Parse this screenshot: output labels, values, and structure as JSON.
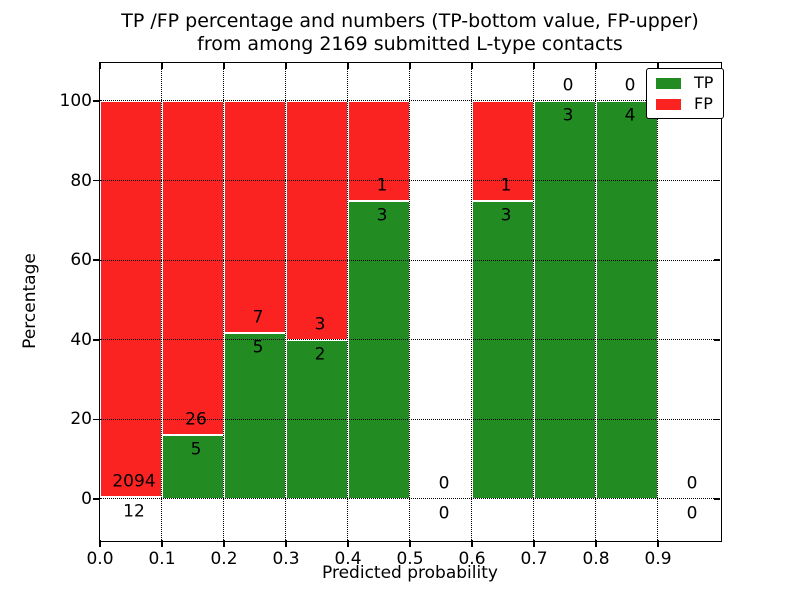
{
  "figure": {
    "title_line1": "TP /FP percentage and numbers (TP-bottom value, FP-upper)",
    "title_line2": "from among 2169 submitted L-type contacts"
  },
  "colors": {
    "tp": "#228b22",
    "fp": "#fb2222",
    "grid": "#000000",
    "text": "#000000",
    "background": "#ffffff"
  },
  "chart_data": {
    "type": "bar",
    "stacked": true,
    "title": "TP /FP percentage and numbers (TP-bottom value, FP-upper)\nfrom among 2169 submitted L-type contacts",
    "xlabel": "Predicted probability",
    "ylabel": "Percentage",
    "total_contacts": 2169,
    "xlim": [
      0.0,
      1.0
    ],
    "ylim": [
      -10,
      110
    ],
    "x_tick_labels": [
      "0.0",
      "0.1",
      "0.2",
      "0.3",
      "0.4",
      "0.5",
      "0.6",
      "0.7",
      "0.8",
      "0.9"
    ],
    "y_tick_values": [
      0,
      20,
      40,
      60,
      80,
      100
    ],
    "grid": "dotted",
    "legend_position": "upper right",
    "legend": [
      {
        "label": "TP",
        "color": "#228b22"
      },
      {
        "label": "FP",
        "color": "#fb2222"
      }
    ],
    "series": [
      {
        "name": "TP",
        "color": "#228b22",
        "counts": [
          12,
          5,
          5,
          2,
          3,
          0,
          3,
          3,
          4,
          0
        ]
      },
      {
        "name": "FP",
        "color": "#fb2222",
        "counts": [
          2094,
          26,
          7,
          3,
          1,
          0,
          1,
          0,
          0,
          0
        ]
      }
    ],
    "bins": [
      {
        "range": "0.0-0.1",
        "tp": 12,
        "fp": 2094,
        "tp_pct": 0.57
      },
      {
        "range": "0.1-0.2",
        "tp": 5,
        "fp": 26,
        "tp_pct": 16.13
      },
      {
        "range": "0.2-0.3",
        "tp": 5,
        "fp": 7,
        "tp_pct": 41.67
      },
      {
        "range": "0.3-0.4",
        "tp": 2,
        "fp": 3,
        "tp_pct": 40.0
      },
      {
        "range": "0.4-0.5",
        "tp": 3,
        "fp": 1,
        "tp_pct": 75.0
      },
      {
        "range": "0.5-0.6",
        "tp": 0,
        "fp": 0,
        "tp_pct": 0
      },
      {
        "range": "0.6-0.7",
        "tp": 3,
        "fp": 1,
        "tp_pct": 75.0
      },
      {
        "range": "0.7-0.8",
        "tp": 3,
        "fp": 0,
        "tp_pct": 100.0
      },
      {
        "range": "0.8-0.9",
        "tp": 4,
        "fp": 0,
        "tp_pct": 100.0
      },
      {
        "range": "0.9-1.0",
        "tp": 0,
        "fp": 0,
        "tp_pct": 0
      }
    ]
  }
}
